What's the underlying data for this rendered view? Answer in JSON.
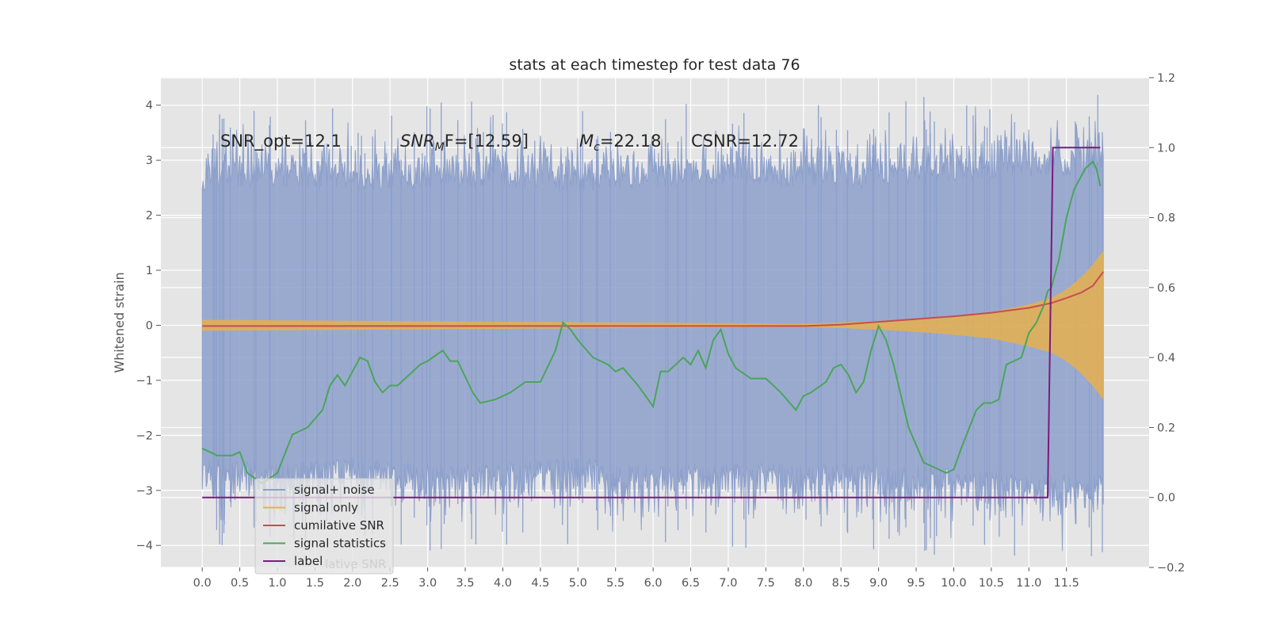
{
  "chart_data": {
    "type": "line",
    "title": "stats at each timestep for test data 76",
    "ylabel": "Whitened strain",
    "xlabel": "",
    "xlim": [
      -0.55,
      12.6
    ],
    "ylim": [
      -4.4,
      4.5
    ],
    "y2lim": [
      -0.2,
      1.2
    ],
    "xticks": [
      "0.0",
      "0.5",
      "1.0",
      "1.5",
      "2.0",
      "2.5",
      "3.0",
      "3.5",
      "4.0",
      "4.5",
      "5.0",
      "5.5",
      "6.0",
      "6.5",
      "7.0",
      "7.5",
      "8.0",
      "8.5",
      "9.0",
      "9.5",
      "10.0",
      "10.5",
      "11.0",
      "11.5"
    ],
    "yticks": [
      "4",
      "3",
      "2",
      "1",
      "0",
      "−1",
      "−2",
      "−3",
      "−4"
    ],
    "y2ticks": [
      "1.2",
      "1.0",
      "0.8",
      "0.6",
      "0.4",
      "0.2",
      "0.0",
      "−0.2"
    ],
    "grid": true,
    "legend_position": "lower-left",
    "annotations": {
      "snr_opt": "SNR_opt=12.1",
      "snr_mf_base": "SNR",
      "snr_mf_sub": "M",
      "snr_mf_rest": "F=[12.59]",
      "mc_base": "M",
      "mc_sub": "c",
      "mc_rest": "=22.18",
      "csnr": "CSNR=12.72"
    },
    "series": [
      {
        "name": "signal+ noise",
        "axis": "left",
        "color": "#8da0cb",
        "envelope_x": [
          0,
          1,
          2,
          3,
          4,
          5,
          6,
          7,
          8,
          9,
          10,
          11,
          11.99
        ],
        "envelope_upper": [
          2.4,
          2.5,
          2.4,
          2.5,
          2.5,
          2.4,
          2.5,
          2.5,
          2.5,
          2.5,
          2.6,
          2.7,
          2.7
        ],
        "envelope_lower": [
          -2.4,
          -2.5,
          -2.4,
          -2.5,
          -2.5,
          -2.4,
          -2.5,
          -2.5,
          -2.5,
          -2.5,
          -2.6,
          -2.7,
          -2.7
        ]
      },
      {
        "name": "signal only",
        "axis": "left",
        "color": "#e6b04e",
        "x": [
          0,
          8.0,
          8.5,
          9.0,
          9.5,
          10.0,
          10.5,
          11.0,
          11.3,
          11.5,
          11.7,
          11.85,
          11.99
        ],
        "amplitude": [
          0.1,
          0.03,
          0.05,
          0.08,
          0.12,
          0.17,
          0.24,
          0.38,
          0.5,
          0.65,
          0.88,
          1.1,
          1.35
        ]
      },
      {
        "name": "cumilative SNR",
        "axis": "right",
        "color": "#c44e52",
        "x": [
          0,
          8.0,
          8.5,
          9.0,
          9.5,
          10.0,
          10.5,
          11.0,
          11.3,
          11.5,
          11.7,
          11.85,
          11.99
        ],
        "y": [
          0.49,
          0.49,
          0.494,
          0.502,
          0.51,
          0.518,
          0.528,
          0.542,
          0.556,
          0.57,
          0.586,
          0.605,
          0.645
        ]
      },
      {
        "name": "signal statistics",
        "axis": "right",
        "color": "#4aa55a",
        "x": [
          0,
          0.2,
          0.4,
          0.5,
          0.6,
          0.8,
          1.0,
          1.2,
          1.4,
          1.6,
          1.7,
          1.8,
          1.9,
          2.0,
          2.1,
          2.2,
          2.3,
          2.4,
          2.5,
          2.6,
          2.8,
          2.9,
          3.0,
          3.2,
          3.3,
          3.4,
          3.6,
          3.7,
          3.9,
          4.1,
          4.3,
          4.5,
          4.7,
          4.8,
          4.9,
          5.0,
          5.2,
          5.4,
          5.5,
          5.6,
          5.8,
          6.0,
          6.1,
          6.2,
          6.4,
          6.5,
          6.6,
          6.7,
          6.8,
          6.9,
          7.0,
          7.1,
          7.3,
          7.5,
          7.7,
          7.9,
          8.0,
          8.1,
          8.3,
          8.4,
          8.5,
          8.6,
          8.7,
          8.8,
          8.9,
          9.0,
          9.1,
          9.2,
          9.4,
          9.6,
          9.8,
          9.9,
          10.0,
          10.1,
          10.3,
          10.4,
          10.5,
          10.6,
          10.7,
          10.8,
          10.9,
          11.0,
          11.1,
          11.2,
          11.25,
          11.3,
          11.4,
          11.5,
          11.6,
          11.7,
          11.75,
          11.8,
          11.85,
          11.9,
          11.95
        ],
        "y": [
          0.14,
          0.12,
          0.12,
          0.13,
          0.07,
          0.04,
          0.07,
          0.18,
          0.2,
          0.25,
          0.32,
          0.35,
          0.32,
          0.36,
          0.4,
          0.39,
          0.33,
          0.3,
          0.32,
          0.32,
          0.36,
          0.38,
          0.39,
          0.42,
          0.39,
          0.39,
          0.3,
          0.27,
          0.28,
          0.3,
          0.33,
          0.33,
          0.42,
          0.5,
          0.48,
          0.45,
          0.4,
          0.38,
          0.36,
          0.37,
          0.32,
          0.26,
          0.36,
          0.36,
          0.4,
          0.38,
          0.42,
          0.37,
          0.45,
          0.48,
          0.41,
          0.37,
          0.34,
          0.34,
          0.3,
          0.25,
          0.29,
          0.3,
          0.33,
          0.37,
          0.38,
          0.35,
          0.3,
          0.33,
          0.42,
          0.49,
          0.45,
          0.38,
          0.2,
          0.1,
          0.08,
          0.07,
          0.08,
          0.14,
          0.25,
          0.27,
          0.27,
          0.28,
          0.38,
          0.39,
          0.4,
          0.47,
          0.5,
          0.55,
          0.59,
          0.6,
          0.68,
          0.8,
          0.88,
          0.92,
          0.94,
          0.95,
          0.96,
          0.94,
          0.89
        ]
      },
      {
        "name": "label",
        "axis": "right",
        "color": "#7b1a7e",
        "x": [
          0,
          11.25,
          11.32,
          11.95
        ],
        "y": [
          0.0,
          0.0,
          1.0,
          1.0
        ]
      }
    ],
    "legend_ghost_text": "lative SNR"
  }
}
